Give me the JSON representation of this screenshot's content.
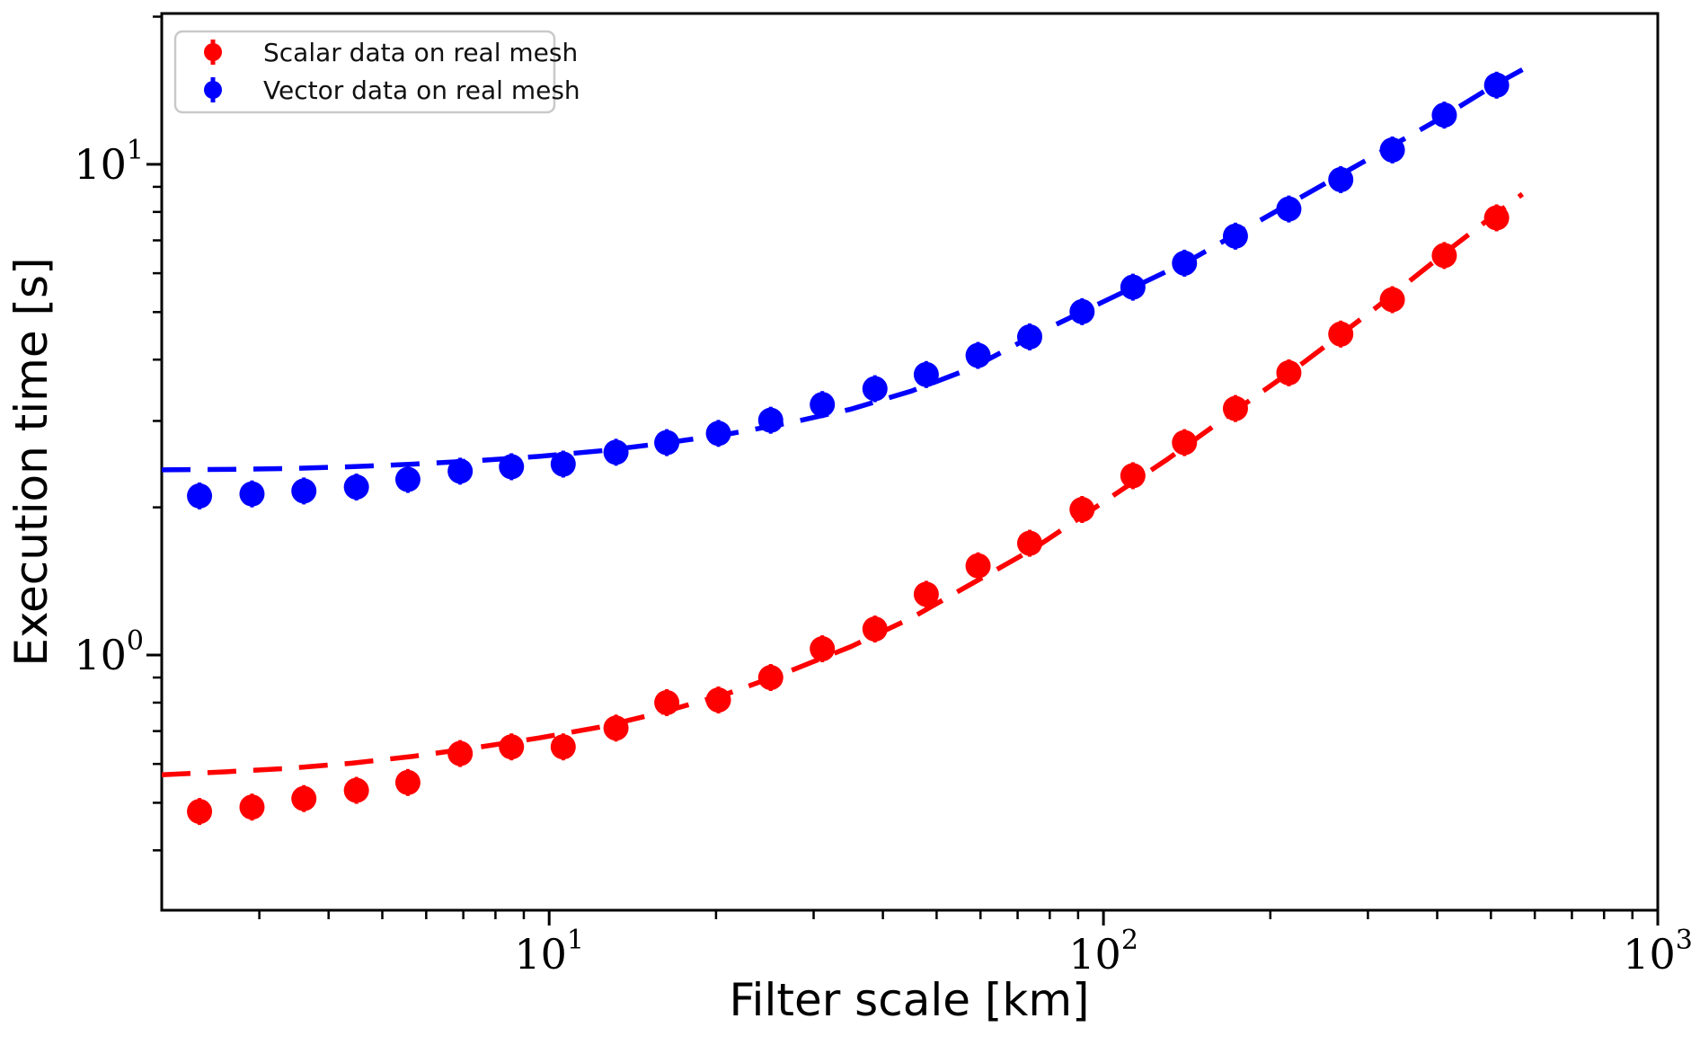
{
  "figure": {
    "background": "#ffffff"
  },
  "axes": {
    "xlabel": "Filter scale [km]",
    "ylabel": "Execution time [s]",
    "xscale": "log",
    "yscale": "log",
    "xlim": [
      2,
      1000
    ],
    "ylim": [
      0.302,
      20.3
    ],
    "x_major_ticks": [
      {
        "value": 10,
        "base": "10",
        "exp": "1"
      },
      {
        "value": 100,
        "base": "10",
        "exp": "2"
      },
      {
        "value": 1000,
        "base": "10",
        "exp": "3"
      }
    ],
    "x_minor_ticks": [
      3,
      4,
      5,
      6,
      7,
      8,
      9,
      20,
      30,
      40,
      50,
      60,
      70,
      80,
      90,
      200,
      300,
      400,
      500,
      600,
      700,
      800,
      900
    ],
    "y_major_ticks": [
      {
        "value": 1,
        "base": "10",
        "exp": "0"
      },
      {
        "value": 10,
        "base": "10",
        "exp": "1"
      }
    ],
    "y_minor_ticks": [
      0.4,
      0.5,
      0.6,
      0.7,
      0.8,
      0.9,
      2,
      3,
      4,
      5,
      6,
      7,
      8,
      9,
      20
    ]
  },
  "legend": {
    "items": [
      {
        "label": "Scalar data on real mesh",
        "color": "#ff0000"
      },
      {
        "label": "Vector data on real mesh",
        "color": "#0000ff"
      }
    ]
  },
  "chart_data": {
    "type": "scatter",
    "title": "",
    "xlabel": "Filter scale [km]",
    "ylabel": "Execution time [s]",
    "xscale": "log",
    "yscale": "log",
    "xlim": [
      2,
      1000
    ],
    "ylim": [
      0.3,
      20.3
    ],
    "grid": false,
    "legend_position": "upper left",
    "marker": "circle with error bar",
    "x": [
      2.34,
      2.91,
      3.61,
      4.49,
      5.56,
      6.91,
      8.55,
      10.6,
      13.2,
      16.3,
      20.2,
      25.1,
      31.1,
      38.7,
      47.9,
      59.4,
      73.6,
      91.5,
      113,
      140,
      173,
      216,
      268,
      332,
      412,
      512
    ],
    "series": [
      {
        "name": "Scalar data on real mesh",
        "color": "#ff0000",
        "values": [
          0.48,
          0.49,
          0.51,
          0.53,
          0.55,
          0.63,
          0.65,
          0.65,
          0.71,
          0.8,
          0.81,
          0.9,
          1.03,
          1.13,
          1.33,
          1.52,
          1.69,
          1.98,
          2.32,
          2.71,
          3.18,
          3.76,
          4.51,
          5.3,
          6.52,
          7.78
        ]
      },
      {
        "name": "Vector data on real mesh",
        "color": "#0000ff",
        "values": [
          2.11,
          2.13,
          2.16,
          2.2,
          2.28,
          2.37,
          2.42,
          2.45,
          2.59,
          2.71,
          2.83,
          3.01,
          3.24,
          3.49,
          3.73,
          4.08,
          4.45,
          5.01,
          5.62,
          6.29,
          7.14,
          8.11,
          9.31,
          10.7,
          12.6,
          14.5
        ]
      }
    ],
    "fit_lines": [
      {
        "series": "Scalar data on real mesh",
        "color": "#ff0000",
        "style": "dashed",
        "points": [
          [
            2.0,
            0.57
          ],
          [
            2.6,
            0.578
          ],
          [
            3.4,
            0.588
          ],
          [
            4.4,
            0.602
          ],
          [
            5.7,
            0.622
          ],
          [
            7.4,
            0.648
          ],
          [
            9.6,
            0.678
          ],
          [
            12.5,
            0.715
          ],
          [
            16,
            0.765
          ],
          [
            21,
            0.835
          ],
          [
            27,
            0.925
          ],
          [
            35,
            1.04
          ],
          [
            45,
            1.19
          ],
          [
            58,
            1.4
          ],
          [
            75,
            1.65
          ],
          [
            98,
            2.02
          ],
          [
            130,
            2.5
          ],
          [
            173,
            3.15
          ],
          [
            230,
            3.95
          ],
          [
            310,
            5.1
          ],
          [
            420,
            6.7
          ],
          [
            512,
            7.95
          ],
          [
            570,
            8.7
          ]
        ]
      },
      {
        "series": "Vector data on real mesh",
        "color": "#0000ff",
        "style": "dashed",
        "points": [
          [
            2.0,
            2.385
          ],
          [
            2.6,
            2.39
          ],
          [
            3.4,
            2.4
          ],
          [
            4.4,
            2.42
          ],
          [
            5.7,
            2.45
          ],
          [
            7.4,
            2.49
          ],
          [
            9.6,
            2.54
          ],
          [
            12.5,
            2.61
          ],
          [
            16,
            2.7
          ],
          [
            21,
            2.82
          ],
          [
            27,
            2.97
          ],
          [
            35,
            3.17
          ],
          [
            45,
            3.45
          ],
          [
            58,
            3.85
          ],
          [
            75,
            4.49
          ],
          [
            100,
            5.25
          ],
          [
            143,
            6.37
          ],
          [
            200,
            7.9
          ],
          [
            280,
            9.8
          ],
          [
            400,
            12.3
          ],
          [
            512,
            14.6
          ],
          [
            570,
            15.6
          ]
        ]
      }
    ]
  }
}
